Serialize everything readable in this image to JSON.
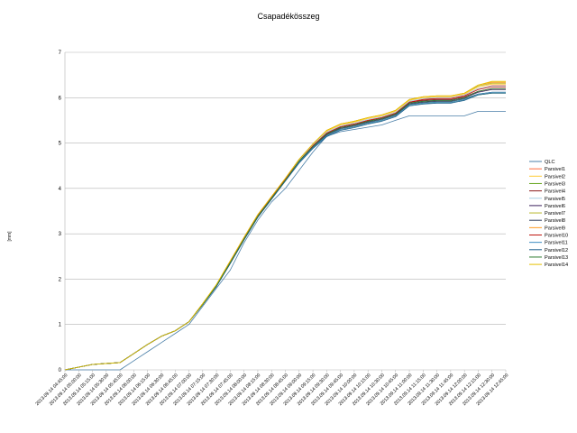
{
  "chart_data": {
    "type": "line",
    "title": "Csapadékösszeg",
    "ylabel": "[mm]",
    "xlabel": "",
    "ylim": [
      0,
      7
    ],
    "yticks": [
      "0",
      "1",
      "2",
      "3",
      "4",
      "5",
      "6",
      "7"
    ],
    "grid": true,
    "legend": "right",
    "x": [
      "2013.09.14 04:45:00",
      "2013.09.14 05:00:00",
      "2013.09.14 05:15:00",
      "2013.09.14 05:30:00",
      "2013.09.14 05:45:00",
      "2013.09.14 06:00:00",
      "2013.09.14 06:15:00",
      "2013.09.14 06:30:00",
      "2013.09.14 06:45:00",
      "2013.09.14 07:00:00",
      "2013.09.14 07:15:00",
      "2013.09.14 07:30:00",
      "2013.09.14 07:45:00",
      "2013.09.14 08:00:00",
      "2013.09.14 08:15:00",
      "2013.09.14 08:30:00",
      "2013.09.14 08:45:00",
      "2013.09.14 09:00:00",
      "2013.09.14 09:15:00",
      "2013.09.14 09:30:00",
      "2013.09.14 09:45:00",
      "2013.09.14 10:00:00",
      "2013.09.14 10:15:00",
      "2013.09.14 10:30:00",
      "2013.09.14 10:45:00",
      "2013.09.14 11:00:00",
      "2013.09.14 11:15:00",
      "2013.09.14 11:30:00",
      "2013.09.14 11:45:00",
      "2013.09.14 12:00:00",
      "2013.09.14 12:15:00",
      "2013.09.14 12:30:00",
      "2013.09.14 12:45:00"
    ],
    "series": [
      {
        "name": "QLC",
        "color": "#4a7fa8",
        "values": [
          0,
          0,
          0,
          0,
          0,
          0.2,
          0.4,
          0.6,
          0.8,
          1.0,
          1.4,
          1.8,
          2.2,
          2.8,
          3.3,
          3.7,
          4.0,
          4.4,
          4.8,
          5.15,
          5.25,
          5.3,
          5.35,
          5.4,
          5.5,
          5.6,
          5.6,
          5.6,
          5.6,
          5.6,
          5.7,
          5.7,
          5.7
        ]
      },
      {
        "name": "Parsivel1",
        "color": "#ff6b3d",
        "values": [
          0,
          0.06,
          0.12,
          0.14,
          0.16,
          0.36,
          0.56,
          0.74,
          0.86,
          1.06,
          1.44,
          1.86,
          2.38,
          2.9,
          3.4,
          3.8,
          4.2,
          4.62,
          4.94,
          5.22,
          5.36,
          5.42,
          5.5,
          5.56,
          5.66,
          5.9,
          5.96,
          6.0,
          6.0,
          6.06,
          6.2,
          6.27,
          6.27
        ]
      },
      {
        "name": "Parsivel2",
        "color": "#ffcc33",
        "values": [
          0,
          0.06,
          0.12,
          0.14,
          0.16,
          0.36,
          0.56,
          0.74,
          0.86,
          1.06,
          1.46,
          1.88,
          2.4,
          2.92,
          3.42,
          3.82,
          4.22,
          4.64,
          4.98,
          5.26,
          5.4,
          5.46,
          5.54,
          5.6,
          5.7,
          5.94,
          6.0,
          6.02,
          6.02,
          6.08,
          6.24,
          6.3,
          6.3
        ]
      },
      {
        "name": "Parsivel3",
        "color": "#66a61e",
        "values": [
          0,
          0.06,
          0.12,
          0.14,
          0.16,
          0.36,
          0.56,
          0.74,
          0.86,
          1.06,
          1.44,
          1.84,
          2.36,
          2.88,
          3.38,
          3.78,
          4.18,
          4.58,
          4.9,
          5.16,
          5.3,
          5.36,
          5.44,
          5.5,
          5.6,
          5.84,
          5.88,
          5.9,
          5.9,
          5.96,
          6.06,
          6.1,
          6.1
        ]
      },
      {
        "name": "Parsivel4",
        "color": "#8b1a1a",
        "values": [
          0,
          0.06,
          0.12,
          0.14,
          0.16,
          0.36,
          0.56,
          0.74,
          0.86,
          1.06,
          1.46,
          1.86,
          2.38,
          2.9,
          3.4,
          3.8,
          4.2,
          4.6,
          4.92,
          5.2,
          5.34,
          5.4,
          5.48,
          5.54,
          5.64,
          5.9,
          5.94,
          5.96,
          5.96,
          6.02,
          6.14,
          6.2,
          6.2
        ]
      },
      {
        "name": "Parsivel5",
        "color": "#a6cee3",
        "values": [
          0,
          0.06,
          0.12,
          0.14,
          0.16,
          0.36,
          0.56,
          0.74,
          0.86,
          1.06,
          1.44,
          1.86,
          2.38,
          2.9,
          3.4,
          3.8,
          4.2,
          4.62,
          4.96,
          5.24,
          5.38,
          5.44,
          5.52,
          5.58,
          5.68,
          5.92,
          5.98,
          6.0,
          6.0,
          6.06,
          6.2,
          6.26,
          6.26
        ]
      },
      {
        "name": "Parsivel6",
        "color": "#3b1f5c",
        "values": [
          0,
          0.06,
          0.12,
          0.14,
          0.16,
          0.36,
          0.56,
          0.74,
          0.86,
          1.06,
          1.44,
          1.84,
          2.36,
          2.88,
          3.38,
          3.78,
          4.18,
          4.6,
          4.92,
          5.2,
          5.34,
          5.4,
          5.48,
          5.54,
          5.64,
          5.88,
          5.92,
          5.94,
          5.94,
          6.0,
          6.12,
          6.18,
          6.18
        ]
      },
      {
        "name": "Parsivel7",
        "color": "#b8b82e",
        "values": [
          0,
          0.06,
          0.12,
          0.14,
          0.16,
          0.36,
          0.56,
          0.74,
          0.86,
          1.06,
          1.46,
          1.88,
          2.4,
          2.92,
          3.42,
          3.82,
          4.22,
          4.64,
          4.98,
          5.28,
          5.42,
          5.48,
          5.56,
          5.62,
          5.72,
          5.96,
          6.02,
          6.04,
          6.04,
          6.1,
          6.26,
          6.32,
          6.32
        ]
      },
      {
        "name": "Parsivel8",
        "color": "#2b3a5c",
        "values": [
          0,
          0.06,
          0.12,
          0.14,
          0.16,
          0.36,
          0.56,
          0.74,
          0.86,
          1.06,
          1.44,
          1.84,
          2.36,
          2.88,
          3.38,
          3.78,
          4.18,
          4.58,
          4.9,
          5.18,
          5.32,
          5.38,
          5.46,
          5.52,
          5.62,
          5.86,
          5.9,
          5.92,
          5.92,
          5.98,
          6.08,
          6.12,
          6.12
        ]
      },
      {
        "name": "Parsivel9",
        "color": "#ff9a1f",
        "values": [
          0,
          0.06,
          0.12,
          0.14,
          0.16,
          0.36,
          0.56,
          0.74,
          0.86,
          1.06,
          1.46,
          1.88,
          2.4,
          2.92,
          3.42,
          3.82,
          4.22,
          4.64,
          4.98,
          5.28,
          5.42,
          5.48,
          5.56,
          5.62,
          5.72,
          5.96,
          6.02,
          6.04,
          6.04,
          6.1,
          6.28,
          6.34,
          6.34
        ]
      },
      {
        "name": "Parsivel10",
        "color": "#c0150f",
        "values": [
          0,
          0.06,
          0.12,
          0.14,
          0.16,
          0.36,
          0.56,
          0.74,
          0.86,
          1.06,
          1.44,
          1.86,
          2.38,
          2.9,
          3.4,
          3.8,
          4.2,
          4.6,
          4.94,
          5.22,
          5.36,
          5.42,
          5.5,
          5.56,
          5.66,
          5.9,
          5.96,
          5.98,
          5.98,
          6.04,
          6.18,
          6.24,
          6.24
        ]
      },
      {
        "name": "Parsivel11",
        "color": "#3c8cc0",
        "values": [
          0,
          0.06,
          0.12,
          0.14,
          0.16,
          0.36,
          0.56,
          0.74,
          0.86,
          1.06,
          1.44,
          1.84,
          2.36,
          2.88,
          3.38,
          3.78,
          4.18,
          4.58,
          4.9,
          5.16,
          5.3,
          5.36,
          5.44,
          5.5,
          5.6,
          5.84,
          5.88,
          5.9,
          5.9,
          5.96,
          6.08,
          6.12,
          6.12
        ]
      },
      {
        "name": "Parsivel12",
        "color": "#1b5e8c",
        "values": [
          0,
          0.06,
          0.12,
          0.14,
          0.16,
          0.36,
          0.56,
          0.74,
          0.86,
          1.06,
          1.44,
          1.84,
          2.34,
          2.86,
          3.36,
          3.76,
          4.16,
          4.56,
          4.88,
          5.14,
          5.28,
          5.34,
          5.42,
          5.48,
          5.58,
          5.82,
          5.86,
          5.88,
          5.88,
          5.94,
          6.06,
          6.1,
          6.1
        ]
      },
      {
        "name": "Parsivel13",
        "color": "#2e7d32",
        "values": [
          0,
          0.06,
          0.12,
          0.14,
          0.16,
          0.36,
          0.56,
          0.74,
          0.86,
          1.06,
          1.44,
          1.86,
          2.36,
          2.88,
          3.38,
          3.78,
          4.18,
          4.6,
          4.92,
          5.2,
          5.34,
          5.4,
          5.48,
          5.54,
          5.64,
          5.88,
          5.92,
          5.94,
          5.94,
          6.0,
          6.14,
          6.2,
          6.2
        ]
      },
      {
        "name": "Parsivel14",
        "color": "#e6c200",
        "values": [
          0,
          0.06,
          0.12,
          0.14,
          0.16,
          0.36,
          0.56,
          0.74,
          0.86,
          1.06,
          1.46,
          1.88,
          2.4,
          2.92,
          3.42,
          3.82,
          4.22,
          4.64,
          4.98,
          5.28,
          5.42,
          5.48,
          5.56,
          5.62,
          5.72,
          5.96,
          6.02,
          6.04,
          6.04,
          6.1,
          6.28,
          6.36,
          6.36
        ]
      }
    ]
  }
}
